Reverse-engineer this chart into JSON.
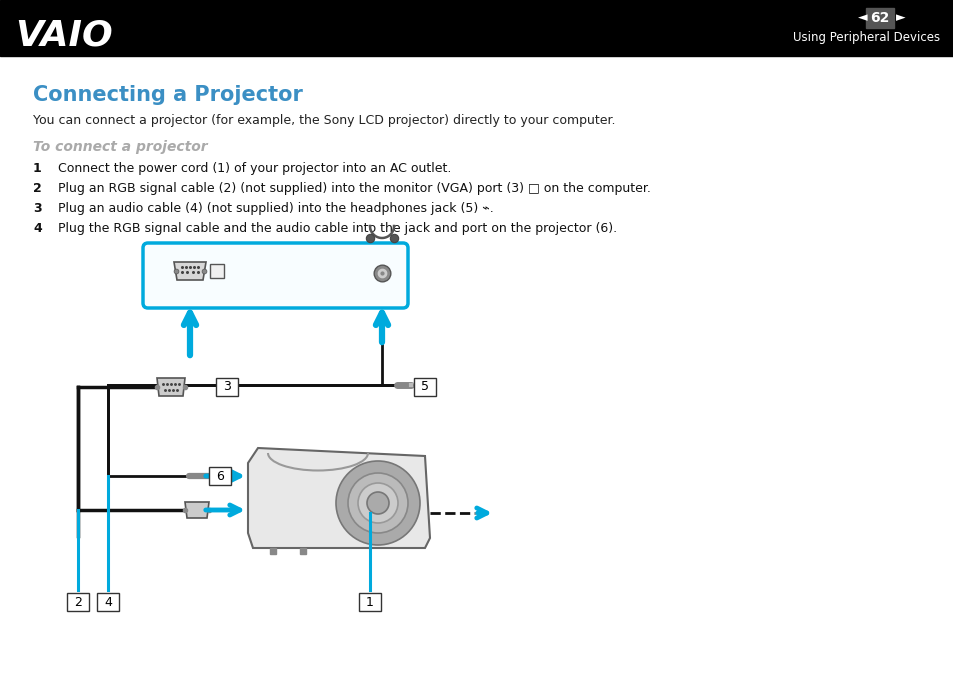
{
  "bg_color": "#ffffff",
  "header_bg": "#000000",
  "page_number": "62",
  "header_subtitle": "Using Peripheral Devices",
  "title": "Connecting a Projector",
  "title_color": "#3b8fc4",
  "subtitle": "To connect a projector",
  "subtitle_color": "#aaaaaa",
  "intro": "You can connect a projector (for example, the Sony LCD projector) directly to your computer.",
  "steps": [
    "Connect the power cord (1) of your projector into an AC outlet.",
    "Plug an RGB signal cable (2) (not supplied) into the monitor (VGA) port (3) □ on the computer.",
    "Plug an audio cable (4) (not supplied) into the headphones jack (5) ⌁.",
    "Plug the RGB signal cable and the audio cable into the jack and port on the projector (6)."
  ],
  "cyan_color": "#00aadd",
  "label_border_color": "#000000",
  "cable_color": "#111111"
}
